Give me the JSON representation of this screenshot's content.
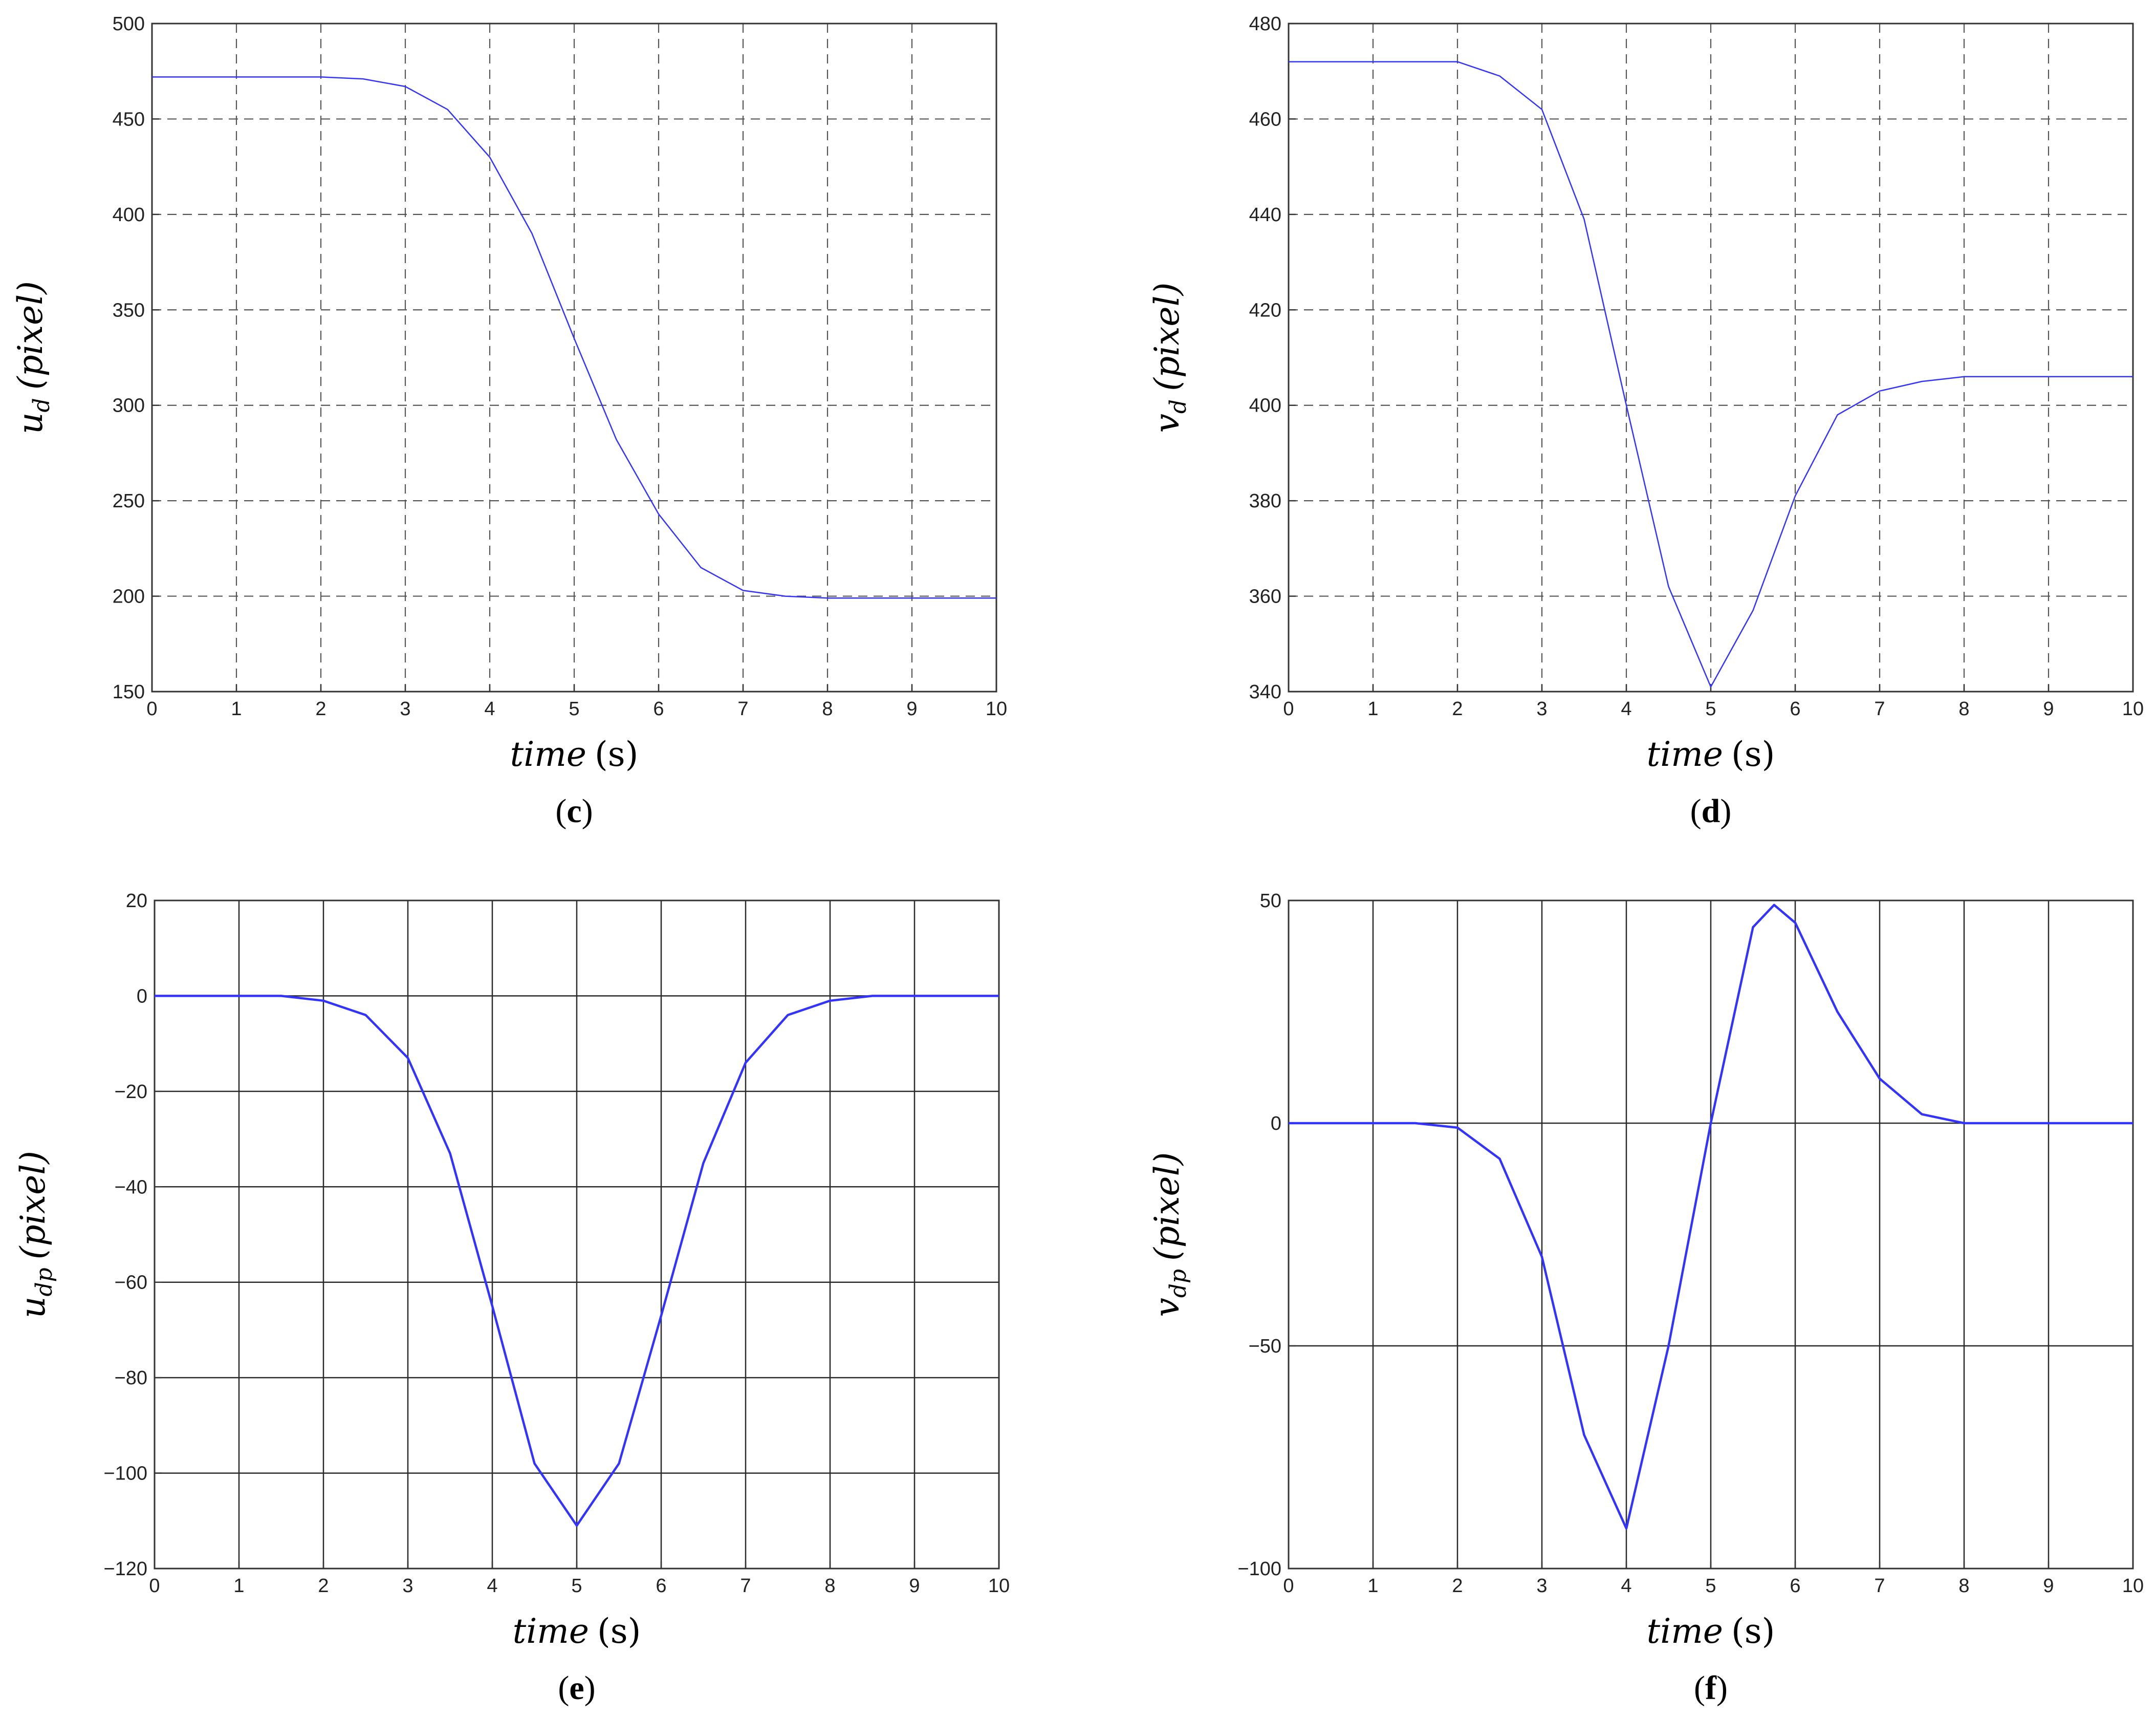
{
  "chart_data": [
    {
      "panel": "c",
      "type": "line",
      "grid_style": "dashed",
      "xlabel": {
        "var": "time",
        "unit": "(s)"
      },
      "ylabel": {
        "base": "u",
        "sub": "d",
        "unit": "(pixel)"
      },
      "xlim": [
        0,
        10
      ],
      "ylim": [
        150,
        500
      ],
      "xticks": [
        0,
        1,
        2,
        3,
        4,
        5,
        6,
        7,
        8,
        9,
        10
      ],
      "yticks": [
        150,
        200,
        250,
        300,
        350,
        400,
        450,
        500
      ],
      "series": [
        {
          "color": "#3333ff",
          "x": [
            0,
            1,
            2,
            2.5,
            3,
            3.5,
            4,
            4.5,
            5,
            5.5,
            6,
            6.5,
            7,
            7.5,
            8,
            9,
            10
          ],
          "y": [
            472,
            472,
            472,
            471,
            467,
            455,
            430,
            390,
            335,
            282,
            243,
            215,
            203,
            200,
            199,
            199,
            199
          ]
        }
      ]
    },
    {
      "panel": "d",
      "type": "line",
      "grid_style": "dashed",
      "xlabel": {
        "var": "time",
        "unit": "(s)"
      },
      "ylabel": {
        "base": "v",
        "sub": "d",
        "unit": "(pixel)"
      },
      "xlim": [
        0,
        10
      ],
      "ylim": [
        340,
        480
      ],
      "xticks": [
        0,
        1,
        2,
        3,
        4,
        5,
        6,
        7,
        8,
        9,
        10
      ],
      "yticks": [
        340,
        360,
        380,
        400,
        420,
        440,
        460,
        480
      ],
      "series": [
        {
          "color": "#3333ff",
          "x": [
            0,
            1,
            2,
            2.5,
            3,
            3.5,
            4,
            4.5,
            5,
            5.5,
            6,
            6.5,
            7,
            7.5,
            8,
            9,
            10
          ],
          "y": [
            472,
            472,
            472,
            469,
            462,
            439,
            400,
            362,
            341,
            357,
            381,
            398,
            403,
            405,
            406,
            406,
            406
          ]
        }
      ]
    },
    {
      "panel": "e",
      "type": "line",
      "grid_style": "solid",
      "xlabel": {
        "var": "time",
        "unit": "(s)"
      },
      "ylabel": {
        "base": "u",
        "sub": "dp",
        "unit": "(pixel)"
      },
      "xlim": [
        0,
        10
      ],
      "ylim": [
        -120,
        20
      ],
      "xticks": [
        0,
        1,
        2,
        3,
        4,
        5,
        6,
        7,
        8,
        9,
        10
      ],
      "yticks": [
        -120,
        -100,
        -80,
        -60,
        -40,
        -20,
        0,
        20
      ],
      "ytick_labels": [
        "−120",
        "−100",
        "−80",
        "−60",
        "−40",
        "−20",
        "0",
        "20"
      ],
      "series": [
        {
          "color": "#3333ff",
          "x": [
            0,
            1,
            1.5,
            2,
            2.5,
            3,
            3.5,
            4,
            4.5,
            5,
            5.5,
            6,
            6.5,
            7,
            7.5,
            8,
            8.5,
            9,
            10
          ],
          "y": [
            0,
            0,
            0,
            -1,
            -4,
            -13,
            -33,
            -65,
            -98,
            -111,
            -98,
            -67,
            -35,
            -14,
            -4,
            -1,
            0,
            0,
            0
          ]
        }
      ]
    },
    {
      "panel": "f",
      "type": "line",
      "grid_style": "solid",
      "xlabel": {
        "var": "time",
        "unit": "(s)"
      },
      "ylabel": {
        "base": "v",
        "sub": "dp",
        "unit": "(pixel)"
      },
      "xlim": [
        0,
        10
      ],
      "ylim": [
        -100,
        50
      ],
      "xticks": [
        0,
        1,
        2,
        3,
        4,
        5,
        6,
        7,
        8,
        9,
        10
      ],
      "yticks": [
        -100,
        -50,
        0,
        50
      ],
      "ytick_labels": [
        "−100",
        "−50",
        "0",
        "50"
      ],
      "series": [
        {
          "color": "#3333ff",
          "x": [
            0,
            1,
            1.5,
            2,
            2.5,
            3,
            3.5,
            4,
            4.5,
            5,
            5.5,
            5.75,
            6,
            6.5,
            7,
            7.5,
            8,
            9,
            10
          ],
          "y": [
            0,
            0,
            0,
            -1,
            -8,
            -30,
            -70,
            -91,
            -50,
            0,
            44,
            49,
            45,
            25,
            10,
            2,
            0,
            0,
            0
          ]
        }
      ]
    }
  ]
}
